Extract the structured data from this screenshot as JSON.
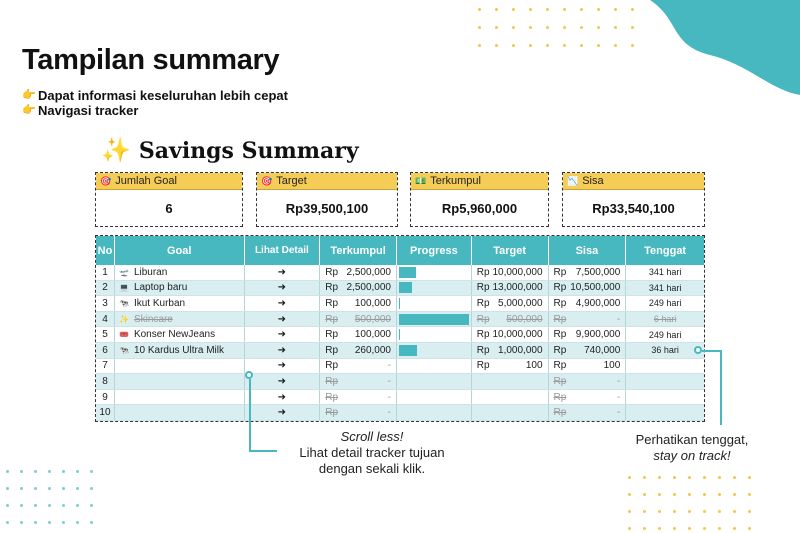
{
  "headline": "Tampilan summary",
  "bullets": [
    {
      "icon": "pointing-hand-icon",
      "text": "Dapat informasi keseluruhan lebih cepat"
    },
    {
      "icon": "pointing-hand-icon",
      "text": "Navigasi tracker"
    }
  ],
  "summary": {
    "title": "Savings Summary",
    "icon": "sparkles-icon",
    "cards": [
      {
        "label": "Jumlah Goal",
        "icon": "target-icon",
        "value": "6"
      },
      {
        "label": "Target",
        "icon": "target-icon",
        "value": "Rp39,500,100"
      },
      {
        "label": "Terkumpul",
        "icon": "money-icon",
        "value": "Rp5,960,000"
      },
      {
        "label": "Sisa",
        "icon": "chart-down-icon",
        "value": "Rp33,540,100"
      }
    ]
  },
  "table": {
    "headers": [
      "No",
      "Goal",
      "Lihat Detail",
      "Terkumpul",
      "Progress",
      "Target",
      "Sisa",
      "Tenggat"
    ],
    "currency": "Rp",
    "arrow": "➜",
    "rows": [
      {
        "no": "1",
        "goal": "Liburan",
        "goal_icon": "plane-icon",
        "terkumpul": "2,500,000",
        "progress": 0.25,
        "target": "10,000,000",
        "sisa": "7,500,000",
        "tenggat": "341 hari",
        "done": false
      },
      {
        "no": "2",
        "goal": "Laptop baru",
        "goal_icon": "laptop-icon",
        "terkumpul": "2,500,000",
        "progress": 0.19,
        "target": "13,000,000",
        "sisa": "10,500,000",
        "tenggat": "341 hari",
        "done": false
      },
      {
        "no": "3",
        "goal": "Ikut Kurban",
        "goal_icon": "cow-icon",
        "terkumpul": "100,000",
        "progress": 0.02,
        "target": "5,000,000",
        "sisa": "4,900,000",
        "tenggat": "249 hari",
        "done": false
      },
      {
        "no": "4",
        "goal": "Skincare",
        "goal_icon": "sparkles-icon",
        "terkumpul": "500,000",
        "progress": 1.0,
        "target": "500,000",
        "sisa": "-",
        "tenggat": "6 hari",
        "done": true
      },
      {
        "no": "5",
        "goal": "Konser NewJeans",
        "goal_icon": "ticket-icon",
        "terkumpul": "100,000",
        "progress": 0.01,
        "target": "10,000,000",
        "sisa": "9,900,000",
        "tenggat": "249 hari",
        "done": false
      },
      {
        "no": "6",
        "goal": "10 Kardus Ultra Milk",
        "goal_icon": "cow-icon",
        "terkumpul": "260,000",
        "progress": 0.26,
        "target": "1,000,000",
        "sisa": "740,000",
        "tenggat": "36 hari",
        "done": false
      },
      {
        "no": "7",
        "goal": "",
        "goal_icon": "",
        "terkumpul": "-",
        "progress": 0,
        "target": "100",
        "sisa": "100",
        "tenggat": "",
        "done": false
      },
      {
        "no": "8",
        "goal": "",
        "goal_icon": "",
        "terkumpul": "-",
        "progress": 0,
        "target": "",
        "sisa": "-",
        "tenggat": "",
        "done": false,
        "empty": true
      },
      {
        "no": "9",
        "goal": "",
        "goal_icon": "",
        "terkumpul": "-",
        "progress": 0,
        "target": "",
        "sisa": "-",
        "tenggat": "",
        "done": false,
        "empty": true
      },
      {
        "no": "10",
        "goal": "",
        "goal_icon": "",
        "terkumpul": "-",
        "progress": 0,
        "target": "",
        "sisa": "-",
        "tenggat": "",
        "done": false,
        "empty": true
      }
    ]
  },
  "annotations": {
    "scroll": {
      "line1": "Scroll less!",
      "line2": "Lihat detail tracker tujuan",
      "line3": "dengan sekali klik."
    },
    "deadline": {
      "line1": "Perhatikan tenggat,",
      "line2": "stay on track!"
    }
  },
  "colors": {
    "teal": "#47b7c0",
    "yellow": "#f5cc55",
    "dot_yellow": "#f3c652",
    "dot_teal": "#7fcfd3"
  }
}
